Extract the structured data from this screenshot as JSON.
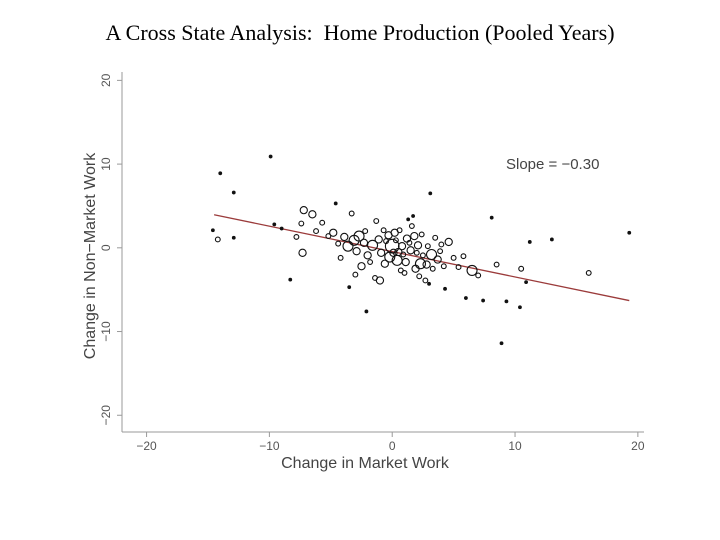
{
  "page": {
    "title": "A Cross State Analysis:  Home Production (Pooled Years)"
  },
  "chart_data": {
    "type": "scatter",
    "xlabel": "Change in Market Work",
    "ylabel": "Change in Non−Market Work",
    "xlim": [
      -22,
      20.5
    ],
    "ylim": [
      -22,
      21
    ],
    "x_ticks": [
      -20,
      -10,
      0,
      10,
      20
    ],
    "x_tick_labels": [
      "−20",
      "−10",
      "0",
      "10",
      "20"
    ],
    "y_ticks": [
      -20,
      -10,
      0,
      10,
      20
    ],
    "y_tick_labels": [
      "−20",
      "−10",
      "0",
      "10",
      "20"
    ],
    "grid": false,
    "annotation": "Slope = −0.30",
    "fit_line": {
      "x": [
        -14.5,
        19.3
      ],
      "y": [
        3.95,
        -6.3
      ],
      "slope": -0.3,
      "color": "#9b3b3b"
    },
    "marker_color": "#111111",
    "points": [
      {
        "x": -14.6,
        "y": 2.1,
        "size": 1
      },
      {
        "x": -14.2,
        "y": 1.0,
        "size": 2
      },
      {
        "x": -14.0,
        "y": 8.9,
        "size": 1
      },
      {
        "x": -12.9,
        "y": 6.6,
        "size": 1
      },
      {
        "x": -12.9,
        "y": 1.2,
        "size": 1
      },
      {
        "x": -9.9,
        "y": 10.9,
        "size": 1
      },
      {
        "x": -9.6,
        "y": 2.8,
        "size": 1
      },
      {
        "x": -9.0,
        "y": 2.3,
        "size": 1
      },
      {
        "x": -8.3,
        "y": -3.8,
        "size": 1
      },
      {
        "x": -7.8,
        "y": 1.3,
        "size": 2
      },
      {
        "x": -7.4,
        "y": 2.9,
        "size": 2
      },
      {
        "x": -7.3,
        "y": -0.6,
        "size": 3
      },
      {
        "x": -7.2,
        "y": 4.5,
        "size": 3
      },
      {
        "x": -6.5,
        "y": 4.0,
        "size": 3
      },
      {
        "x": -6.2,
        "y": 2.0,
        "size": 2
      },
      {
        "x": -5.7,
        "y": 3.0,
        "size": 2
      },
      {
        "x": -5.2,
        "y": 1.4,
        "size": 2
      },
      {
        "x": -4.8,
        "y": 1.8,
        "size": 3
      },
      {
        "x": -4.6,
        "y": 5.3,
        "size": 1
      },
      {
        "x": -4.4,
        "y": 0.5,
        "size": 2
      },
      {
        "x": -4.2,
        "y": -1.2,
        "size": 2
      },
      {
        "x": -3.9,
        "y": 1.3,
        "size": 3
      },
      {
        "x": -3.6,
        "y": 0.2,
        "size": 4
      },
      {
        "x": -3.5,
        "y": -4.7,
        "size": 1
      },
      {
        "x": -3.3,
        "y": 4.1,
        "size": 2
      },
      {
        "x": -3.1,
        "y": 0.9,
        "size": 4
      },
      {
        "x": -3.0,
        "y": -3.2,
        "size": 2
      },
      {
        "x": -2.9,
        "y": -0.4,
        "size": 3
      },
      {
        "x": -2.7,
        "y": 1.4,
        "size": 4
      },
      {
        "x": -2.5,
        "y": -2.2,
        "size": 3
      },
      {
        "x": -2.3,
        "y": 0.6,
        "size": 3
      },
      {
        "x": -2.2,
        "y": 2.0,
        "size": 2
      },
      {
        "x": -2.1,
        "y": -7.6,
        "size": 1
      },
      {
        "x": -2.0,
        "y": -0.9,
        "size": 3
      },
      {
        "x": -1.8,
        "y": -1.7,
        "size": 2
      },
      {
        "x": -1.6,
        "y": 0.3,
        "size": 4
      },
      {
        "x": -1.4,
        "y": -3.6,
        "size": 2
      },
      {
        "x": -1.3,
        "y": 3.2,
        "size": 2
      },
      {
        "x": -1.1,
        "y": 1.0,
        "size": 3
      },
      {
        "x": -1.0,
        "y": -3.9,
        "size": 3
      },
      {
        "x": -0.9,
        "y": -0.6,
        "size": 3
      },
      {
        "x": -0.7,
        "y": 2.1,
        "size": 2
      },
      {
        "x": -0.6,
        "y": -1.9,
        "size": 3
      },
      {
        "x": -0.5,
        "y": 0.8,
        "size": 2
      },
      {
        "x": -0.3,
        "y": 1.5,
        "size": 3
      },
      {
        "x": -0.2,
        "y": -1.1,
        "size": 4
      },
      {
        "x": 0.0,
        "y": 0.2,
        "size": 5
      },
      {
        "x": 0.1,
        "y": -0.6,
        "size": 3
      },
      {
        "x": 0.2,
        "y": 1.8,
        "size": 3
      },
      {
        "x": 0.3,
        "y": 0.9,
        "size": 2
      },
      {
        "x": 0.4,
        "y": -1.5,
        "size": 4
      },
      {
        "x": 0.5,
        "y": -0.5,
        "size": 3
      },
      {
        "x": 0.6,
        "y": 2.1,
        "size": 2
      },
      {
        "x": 0.7,
        "y": -2.7,
        "size": 2
      },
      {
        "x": 0.8,
        "y": 0.2,
        "size": 3
      },
      {
        "x": 0.9,
        "y": -0.8,
        "size": 2
      },
      {
        "x": 1.0,
        "y": -3.0,
        "size": 2
      },
      {
        "x": 1.1,
        "y": -1.7,
        "size": 3
      },
      {
        "x": 1.2,
        "y": 1.1,
        "size": 3
      },
      {
        "x": 1.3,
        "y": 3.4,
        "size": 1
      },
      {
        "x": 1.4,
        "y": 0.6,
        "size": 2
      },
      {
        "x": 1.5,
        "y": -0.3,
        "size": 3
      },
      {
        "x": 1.6,
        "y": 2.6,
        "size": 2
      },
      {
        "x": 1.7,
        "y": 3.8,
        "size": 1
      },
      {
        "x": 1.8,
        "y": 1.4,
        "size": 3
      },
      {
        "x": 1.9,
        "y": -2.5,
        "size": 3
      },
      {
        "x": 2.0,
        "y": -0.6,
        "size": 2
      },
      {
        "x": 2.1,
        "y": 0.3,
        "size": 3
      },
      {
        "x": 2.2,
        "y": -3.4,
        "size": 2
      },
      {
        "x": 2.3,
        "y": -1.9,
        "size": 4
      },
      {
        "x": 2.4,
        "y": 1.6,
        "size": 2
      },
      {
        "x": 2.5,
        "y": -0.9,
        "size": 2
      },
      {
        "x": 2.7,
        "y": -3.9,
        "size": 2
      },
      {
        "x": 2.8,
        "y": -2.0,
        "size": 3
      },
      {
        "x": 2.9,
        "y": 0.2,
        "size": 2
      },
      {
        "x": 3.0,
        "y": -4.3,
        "size": 1
      },
      {
        "x": 3.1,
        "y": 6.5,
        "size": 1
      },
      {
        "x": 3.2,
        "y": -0.8,
        "size": 4
      },
      {
        "x": 3.3,
        "y": -2.5,
        "size": 2
      },
      {
        "x": 3.5,
        "y": 1.2,
        "size": 2
      },
      {
        "x": 3.7,
        "y": -1.4,
        "size": 3
      },
      {
        "x": 3.9,
        "y": -0.4,
        "size": 2
      },
      {
        "x": 4.0,
        "y": 0.4,
        "size": 2
      },
      {
        "x": 4.2,
        "y": -2.2,
        "size": 2
      },
      {
        "x": 4.3,
        "y": -4.9,
        "size": 1
      },
      {
        "x": 4.6,
        "y": 0.7,
        "size": 3
      },
      {
        "x": 5.0,
        "y": -1.2,
        "size": 2
      },
      {
        "x": 5.4,
        "y": -2.3,
        "size": 2
      },
      {
        "x": 5.8,
        "y": -1.0,
        "size": 2
      },
      {
        "x": 6.0,
        "y": -6.0,
        "size": 1
      },
      {
        "x": 6.5,
        "y": -2.7,
        "size": 4
      },
      {
        "x": 7.0,
        "y": -3.3,
        "size": 2
      },
      {
        "x": 7.4,
        "y": -6.3,
        "size": 1
      },
      {
        "x": 8.1,
        "y": 3.6,
        "size": 1
      },
      {
        "x": 8.5,
        "y": -2.0,
        "size": 2
      },
      {
        "x": 8.9,
        "y": -11.4,
        "size": 1
      },
      {
        "x": 9.3,
        "y": -6.4,
        "size": 1
      },
      {
        "x": 10.4,
        "y": -7.1,
        "size": 1
      },
      {
        "x": 10.5,
        "y": -2.5,
        "size": 2
      },
      {
        "x": 10.9,
        "y": -4.1,
        "size": 1
      },
      {
        "x": 11.2,
        "y": 0.7,
        "size": 1
      },
      {
        "x": 13.0,
        "y": 1.0,
        "size": 1
      },
      {
        "x": 16.0,
        "y": -3.0,
        "size": 2
      },
      {
        "x": 19.3,
        "y": 1.8,
        "size": 1
      }
    ]
  }
}
